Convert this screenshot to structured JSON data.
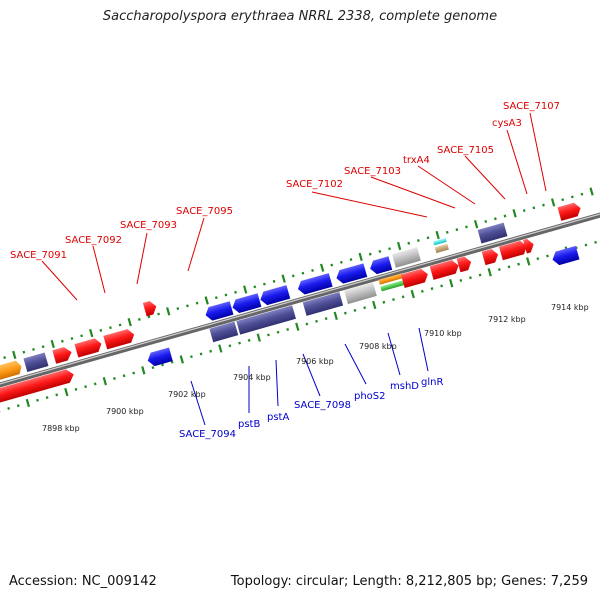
{
  "title": "Saccharopolyspora erythraea NRRL 2338, complete genome",
  "footer": {
    "accession": "Accession: NC_009142",
    "summary": "Topology: circular; Length: 8,212,805 bp; Genes: 7,259"
  },
  "scale_labels": [
    "7898 kbp",
    "7900 kbp",
    "7902 kbp",
    "7904 kbp",
    "7906 kbp",
    "7908 kbp",
    "7910 kbp",
    "7912 kbp",
    "7914 kbp"
  ],
  "upper_labels": [
    "SACE_7091",
    "SACE_7092",
    "SACE_7093",
    "SACE_7095",
    "SACE_7102",
    "SACE_7103",
    "trxA4",
    "SACE_7105",
    "cysA3",
    "SACE_7107"
  ],
  "lower_labels": [
    "SACE_7094",
    "pstB",
    "pstA",
    "SACE_7098",
    "phoS2",
    "mshD",
    "glnR"
  ],
  "colors": {
    "red": "#ff1a1a",
    "orange": "#ffa020",
    "purple": "#4a4a90",
    "blue": "#1a1aee",
    "gray": "#b8b8b8",
    "cyan": "#22dddd",
    "tan": "#c8a880",
    "green": "#44cc44",
    "tick": "#228822",
    "label_red": "#dd0000",
    "label_blue": "#0000cc"
  }
}
